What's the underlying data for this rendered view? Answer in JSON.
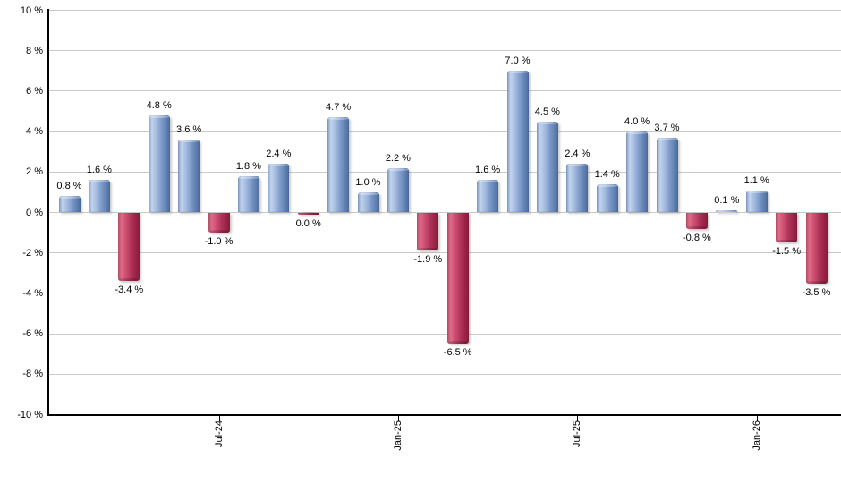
{
  "chart_data": {
    "type": "bar",
    "title": "",
    "xlabel": "",
    "ylabel": "",
    "ylim": [
      -10,
      10
    ],
    "grid": true,
    "grid_step_pct": 2,
    "legend": null,
    "y_ticks": [
      {
        "value": 10,
        "label": "10 %"
      },
      {
        "value": 8,
        "label": "8 %"
      },
      {
        "value": 6,
        "label": "6 %"
      },
      {
        "value": 4,
        "label": "4 %"
      },
      {
        "value": 2,
        "label": "2 %"
      },
      {
        "value": 0,
        "label": "0 %"
      },
      {
        "value": -2,
        "label": "-2 %"
      },
      {
        "value": -4,
        "label": "-4 %"
      },
      {
        "value": -6,
        "label": "-6 %"
      },
      {
        "value": -8,
        "label": "-8 %"
      },
      {
        "value": -10,
        "label": "-10 %"
      }
    ],
    "x_ticks": [
      {
        "bar_index": 5,
        "label": "Jul-24"
      },
      {
        "bar_index": 11,
        "label": "Jan-25"
      },
      {
        "bar_index": 17,
        "label": "Jul-25"
      },
      {
        "bar_index": 23,
        "label": "Jan-26"
      }
    ],
    "bars": [
      {
        "value": 0.8,
        "label": "0.8 %",
        "color": "blue"
      },
      {
        "value": 1.6,
        "label": "1.6 %",
        "color": "blue"
      },
      {
        "value": -3.4,
        "label": "-3.4 %",
        "color": "red"
      },
      {
        "value": 4.8,
        "label": "4.8 %",
        "color": "blue"
      },
      {
        "value": 3.6,
        "label": "3.6 %",
        "color": "blue"
      },
      {
        "value": -1.0,
        "label": "-1.0 %",
        "color": "red"
      },
      {
        "value": 1.8,
        "label": "1.8 %",
        "color": "blue"
      },
      {
        "value": 2.4,
        "label": "2.4 %",
        "color": "blue"
      },
      {
        "value": 0.0,
        "label": "0.0 %",
        "color": "red"
      },
      {
        "value": 4.7,
        "label": "4.7 %",
        "color": "blue"
      },
      {
        "value": 1.0,
        "label": "1.0 %",
        "color": "blue"
      },
      {
        "value": 2.2,
        "label": "2.2 %",
        "color": "blue"
      },
      {
        "value": -1.9,
        "label": "-1.9 %",
        "color": "red"
      },
      {
        "value": -6.5,
        "label": "-6.5 %",
        "color": "red"
      },
      {
        "value": 1.6,
        "label": "1.6 %",
        "color": "blue"
      },
      {
        "value": 7.0,
        "label": "7.0 %",
        "color": "blue"
      },
      {
        "value": 4.5,
        "label": "4.5 %",
        "color": "blue"
      },
      {
        "value": 2.4,
        "label": "2.4 %",
        "color": "blue"
      },
      {
        "value": 1.4,
        "label": "1.4 %",
        "color": "blue"
      },
      {
        "value": 4.0,
        "label": "4.0 %",
        "color": "blue"
      },
      {
        "value": 3.7,
        "label": "3.7 %",
        "color": "blue"
      },
      {
        "value": -0.8,
        "label": "-0.8 %",
        "color": "red"
      },
      {
        "value": 0.1,
        "label": "0.1 %",
        "color": "blue"
      },
      {
        "value": 1.1,
        "label": "1.1 %",
        "color": "blue"
      },
      {
        "value": -1.5,
        "label": "-1.5 %",
        "color": "red"
      },
      {
        "value": -3.5,
        "label": "-3.5 %",
        "color": "red"
      }
    ],
    "colors": {
      "positive_bar": "#6d8dbd",
      "positive_bar_highlight": "#c1d3ee",
      "positive_bar_edge": "#4d6d9b",
      "negative_bar": "#bb3a62",
      "negative_bar_highlight": "#de6a87",
      "negative_bar_edge": "#881c3c",
      "grid": "#c9c9c9",
      "axis": "#000000",
      "text": "#000000",
      "background": "#ffffff"
    }
  }
}
